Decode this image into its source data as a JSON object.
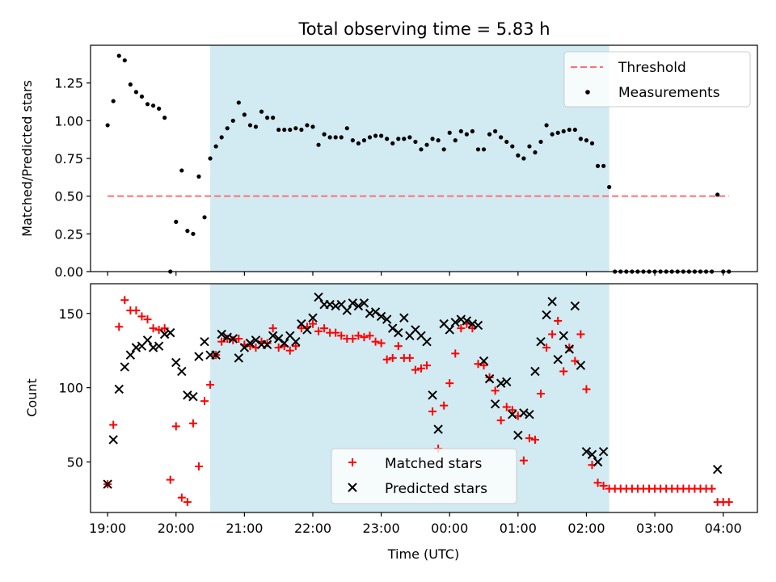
{
  "figure": {
    "title": "Total observing time = 5.83 h"
  },
  "colors": {
    "shade": "#add8e6",
    "threshold": "#ff7070",
    "measurement": "#000000",
    "matched": "#ff0000",
    "predicted": "#000000"
  },
  "chart_data": [
    {
      "type": "scatter",
      "title": "Total observing time = 5.83 h",
      "ylabel": "Matched/Predicted stars",
      "xlabel": "",
      "xlim": [
        "18:45",
        "04:30"
      ],
      "ylim": [
        0,
        1.5
      ],
      "yticks": [
        0.0,
        0.25,
        0.5,
        0.75,
        1.0,
        1.25
      ],
      "ytick_labels": [
        "0.00",
        "0.25",
        "0.50",
        "0.75",
        "1.00",
        "1.25"
      ],
      "shaded_span": [
        "20:30",
        "02:20"
      ],
      "grid": false,
      "legend_position": "top-right",
      "threshold": {
        "name": "Threshold",
        "value": 0.5,
        "x_range": [
          "19:00",
          "04:05"
        ],
        "style": "dashed"
      },
      "series": [
        {
          "name": "Measurements",
          "marker": "dot",
          "x": [
            "19:00",
            "19:05",
            "19:10",
            "19:15",
            "19:20",
            "19:25",
            "19:30",
            "19:35",
            "19:40",
            "19:45",
            "19:50",
            "19:55",
            "20:00",
            "20:05",
            "20:10",
            "20:15",
            "20:20",
            "20:25",
            "20:30",
            "20:35",
            "20:40",
            "20:45",
            "20:50",
            "20:55",
            "21:00",
            "21:05",
            "21:10",
            "21:15",
            "21:20",
            "21:25",
            "21:30",
            "21:35",
            "21:40",
            "21:45",
            "21:50",
            "21:55",
            "22:00",
            "22:05",
            "22:10",
            "22:15",
            "22:20",
            "22:25",
            "22:30",
            "22:35",
            "22:40",
            "22:45",
            "22:50",
            "22:55",
            "23:00",
            "23:05",
            "23:10",
            "23:15",
            "23:20",
            "23:25",
            "23:30",
            "23:35",
            "23:40",
            "23:45",
            "23:50",
            "23:55",
            "00:00",
            "00:05",
            "00:10",
            "00:15",
            "00:20",
            "00:25",
            "00:30",
            "00:35",
            "00:40",
            "00:45",
            "00:50",
            "00:55",
            "01:00",
            "01:05",
            "01:10",
            "01:15",
            "01:20",
            "01:25",
            "01:30",
            "01:35",
            "01:40",
            "01:45",
            "01:50",
            "01:55",
            "02:00",
            "02:05",
            "02:10",
            "02:15",
            "02:20",
            "02:25",
            "02:30",
            "02:35",
            "02:40",
            "02:45",
            "02:50",
            "02:55",
            "03:00",
            "03:05",
            "03:10",
            "03:15",
            "03:20",
            "03:25",
            "03:30",
            "03:35",
            "03:40",
            "03:45",
            "03:50",
            "03:55",
            "04:00",
            "04:05"
          ],
          "y": [
            0.97,
            1.13,
            1.43,
            1.4,
            1.24,
            1.19,
            1.16,
            1.11,
            1.1,
            1.08,
            1.02,
            0.0,
            0.33,
            0.67,
            0.27,
            0.25,
            0.63,
            0.36,
            0.75,
            0.83,
            0.89,
            0.95,
            1.0,
            1.12,
            1.04,
            0.97,
            0.96,
            1.06,
            1.02,
            1.02,
            0.94,
            0.94,
            0.94,
            0.95,
            0.94,
            0.97,
            0.96,
            0.84,
            0.91,
            0.89,
            0.89,
            0.89,
            0.95,
            0.87,
            0.85,
            0.87,
            0.89,
            0.9,
            0.9,
            0.88,
            0.85,
            0.88,
            0.88,
            0.89,
            0.86,
            0.81,
            0.84,
            0.88,
            0.87,
            0.81,
            0.92,
            0.87,
            0.93,
            0.91,
            0.93,
            0.81,
            0.81,
            0.91,
            0.93,
            0.89,
            0.86,
            0.83,
            0.77,
            0.75,
            0.83,
            0.79,
            0.86,
            0.97,
            0.91,
            0.92,
            0.93,
            0.94,
            0.94,
            0.88,
            0.87,
            0.85,
            0.7,
            0.7,
            0.56,
            0.0,
            0.0,
            0.0,
            0.0,
            0.0,
            0.0,
            0.0,
            0.0,
            0.0,
            0.0,
            0.0,
            0.0,
            0.0,
            0.0,
            0.0,
            0.0,
            0.0,
            0.0,
            0.51,
            0.0,
            0.0
          ]
        }
      ]
    },
    {
      "type": "scatter",
      "title": "",
      "ylabel": "Count",
      "xlabel": "Time (UTC)",
      "xlim": [
        "18:45",
        "04:30"
      ],
      "ylim": [
        16,
        170
      ],
      "yticks": [
        50,
        100,
        150
      ],
      "ytick_labels": [
        "50",
        "100",
        "150"
      ],
      "xticks": [
        "19:00",
        "20:00",
        "21:00",
        "22:00",
        "23:00",
        "00:00",
        "01:00",
        "02:00",
        "03:00",
        "04:00"
      ],
      "shaded_span": [
        "20:30",
        "02:20"
      ],
      "grid": false,
      "legend_position": "lower-center",
      "series": [
        {
          "name": "Matched stars",
          "marker": "plus",
          "x": [
            "19:00",
            "19:05",
            "19:10",
            "19:15",
            "19:20",
            "19:25",
            "19:30",
            "19:35",
            "19:40",
            "19:45",
            "19:50",
            "19:55",
            "20:00",
            "20:05",
            "20:10",
            "20:15",
            "20:20",
            "20:25",
            "20:30",
            "20:35",
            "20:40",
            "20:45",
            "20:50",
            "20:55",
            "21:00",
            "21:05",
            "21:10",
            "21:15",
            "21:20",
            "21:25",
            "21:30",
            "21:35",
            "21:40",
            "21:45",
            "21:50",
            "21:55",
            "22:00",
            "22:05",
            "22:10",
            "22:15",
            "22:20",
            "22:25",
            "22:30",
            "22:35",
            "22:40",
            "22:45",
            "22:50",
            "22:55",
            "23:00",
            "23:05",
            "23:10",
            "23:15",
            "23:20",
            "23:25",
            "23:30",
            "23:35",
            "23:40",
            "23:45",
            "23:50",
            "23:55",
            "00:00",
            "00:05",
            "00:10",
            "00:15",
            "00:20",
            "00:25",
            "00:30",
            "00:35",
            "00:40",
            "00:45",
            "00:50",
            "00:55",
            "01:00",
            "01:05",
            "01:10",
            "01:15",
            "01:20",
            "01:25",
            "01:30",
            "01:35",
            "01:40",
            "01:45",
            "01:50",
            "01:55",
            "02:00",
            "02:05",
            "02:10",
            "02:15",
            "02:20",
            "02:25",
            "02:30",
            "02:35",
            "02:40",
            "02:45",
            "02:50",
            "02:55",
            "03:00",
            "03:05",
            "03:10",
            "03:15",
            "03:20",
            "03:25",
            "03:30",
            "03:35",
            "03:40",
            "03:45",
            "03:50",
            "03:55",
            "04:00",
            "04:05"
          ],
          "y": [
            35,
            75,
            141,
            159,
            152,
            152,
            148,
            146,
            140,
            139,
            140,
            38,
            74,
            26,
            23,
            76,
            47,
            91,
            102,
            122,
            131,
            133,
            132,
            133,
            129,
            128,
            127,
            131,
            130,
            140,
            127,
            128,
            125,
            128,
            140,
            141,
            143,
            138,
            140,
            137,
            137,
            135,
            133,
            133,
            135,
            134,
            135,
            131,
            130,
            119,
            120,
            128,
            120,
            120,
            112,
            113,
            115,
            84,
            59,
            88,
            103,
            123,
            140,
            143,
            140,
            116,
            115,
            107,
            98,
            78,
            87,
            85,
            81,
            51,
            66,
            65,
            96,
            127,
            136,
            145,
            111,
            127,
            118,
            136,
            99,
            48,
            36,
            34,
            32,
            32,
            32,
            32,
            32,
            32,
            32,
            32,
            32,
            32,
            32,
            32,
            32,
            32,
            32,
            32,
            32,
            32,
            32,
            23,
            23,
            23
          ]
        },
        {
          "name": "Predicted stars",
          "marker": "x",
          "x": [
            "19:00",
            "19:05",
            "19:10",
            "19:15",
            "19:20",
            "19:25",
            "19:30",
            "19:35",
            "19:40",
            "19:45",
            "19:50",
            "19:55",
            "20:00",
            "20:05",
            "20:10",
            "20:15",
            "20:20",
            "20:25",
            "20:30",
            "20:35",
            "20:40",
            "20:45",
            "20:50",
            "20:55",
            "21:00",
            "21:05",
            "21:10",
            "21:15",
            "21:20",
            "21:25",
            "21:30",
            "21:35",
            "21:40",
            "21:45",
            "21:50",
            "21:55",
            "22:00",
            "22:05",
            "22:10",
            "22:15",
            "22:20",
            "22:25",
            "22:30",
            "22:35",
            "22:40",
            "22:45",
            "22:50",
            "22:55",
            "23:00",
            "23:05",
            "23:10",
            "23:15",
            "23:20",
            "23:25",
            "23:30",
            "23:35",
            "23:40",
            "23:45",
            "23:50",
            "23:55",
            "00:00",
            "00:05",
            "00:10",
            "00:15",
            "00:20",
            "00:25",
            "00:30",
            "00:35",
            "00:40",
            "00:45",
            "00:50",
            "00:55",
            "01:00",
            "01:05",
            "01:10",
            "01:15",
            "01:20",
            "01:25",
            "01:30",
            "01:35",
            "01:40",
            "01:45",
            "01:50",
            "01:55",
            "02:00",
            "02:05",
            "02:10",
            "02:15",
            "03:55"
          ],
          "y": [
            35,
            65,
            99,
            114,
            122,
            127,
            128,
            132,
            127,
            128,
            136,
            137,
            117,
            111,
            95,
            94,
            121,
            131,
            122,
            122,
            136,
            134,
            133,
            120,
            127,
            130,
            132,
            129,
            129,
            135,
            133,
            130,
            135,
            131,
            143,
            139,
            147,
            161,
            156,
            156,
            155,
            156,
            152,
            157,
            155,
            157,
            150,
            151,
            148,
            146,
            140,
            137,
            147,
            135,
            139,
            135,
            131,
            95,
            72,
            143,
            139,
            144,
            146,
            145,
            143,
            142,
            118,
            106,
            89,
            103,
            104,
            82,
            68,
            83,
            82,
            111,
            131,
            149,
            158,
            119,
            135,
            126,
            155,
            115,
            57,
            55,
            50,
            57,
            45
          ]
        }
      ]
    }
  ]
}
